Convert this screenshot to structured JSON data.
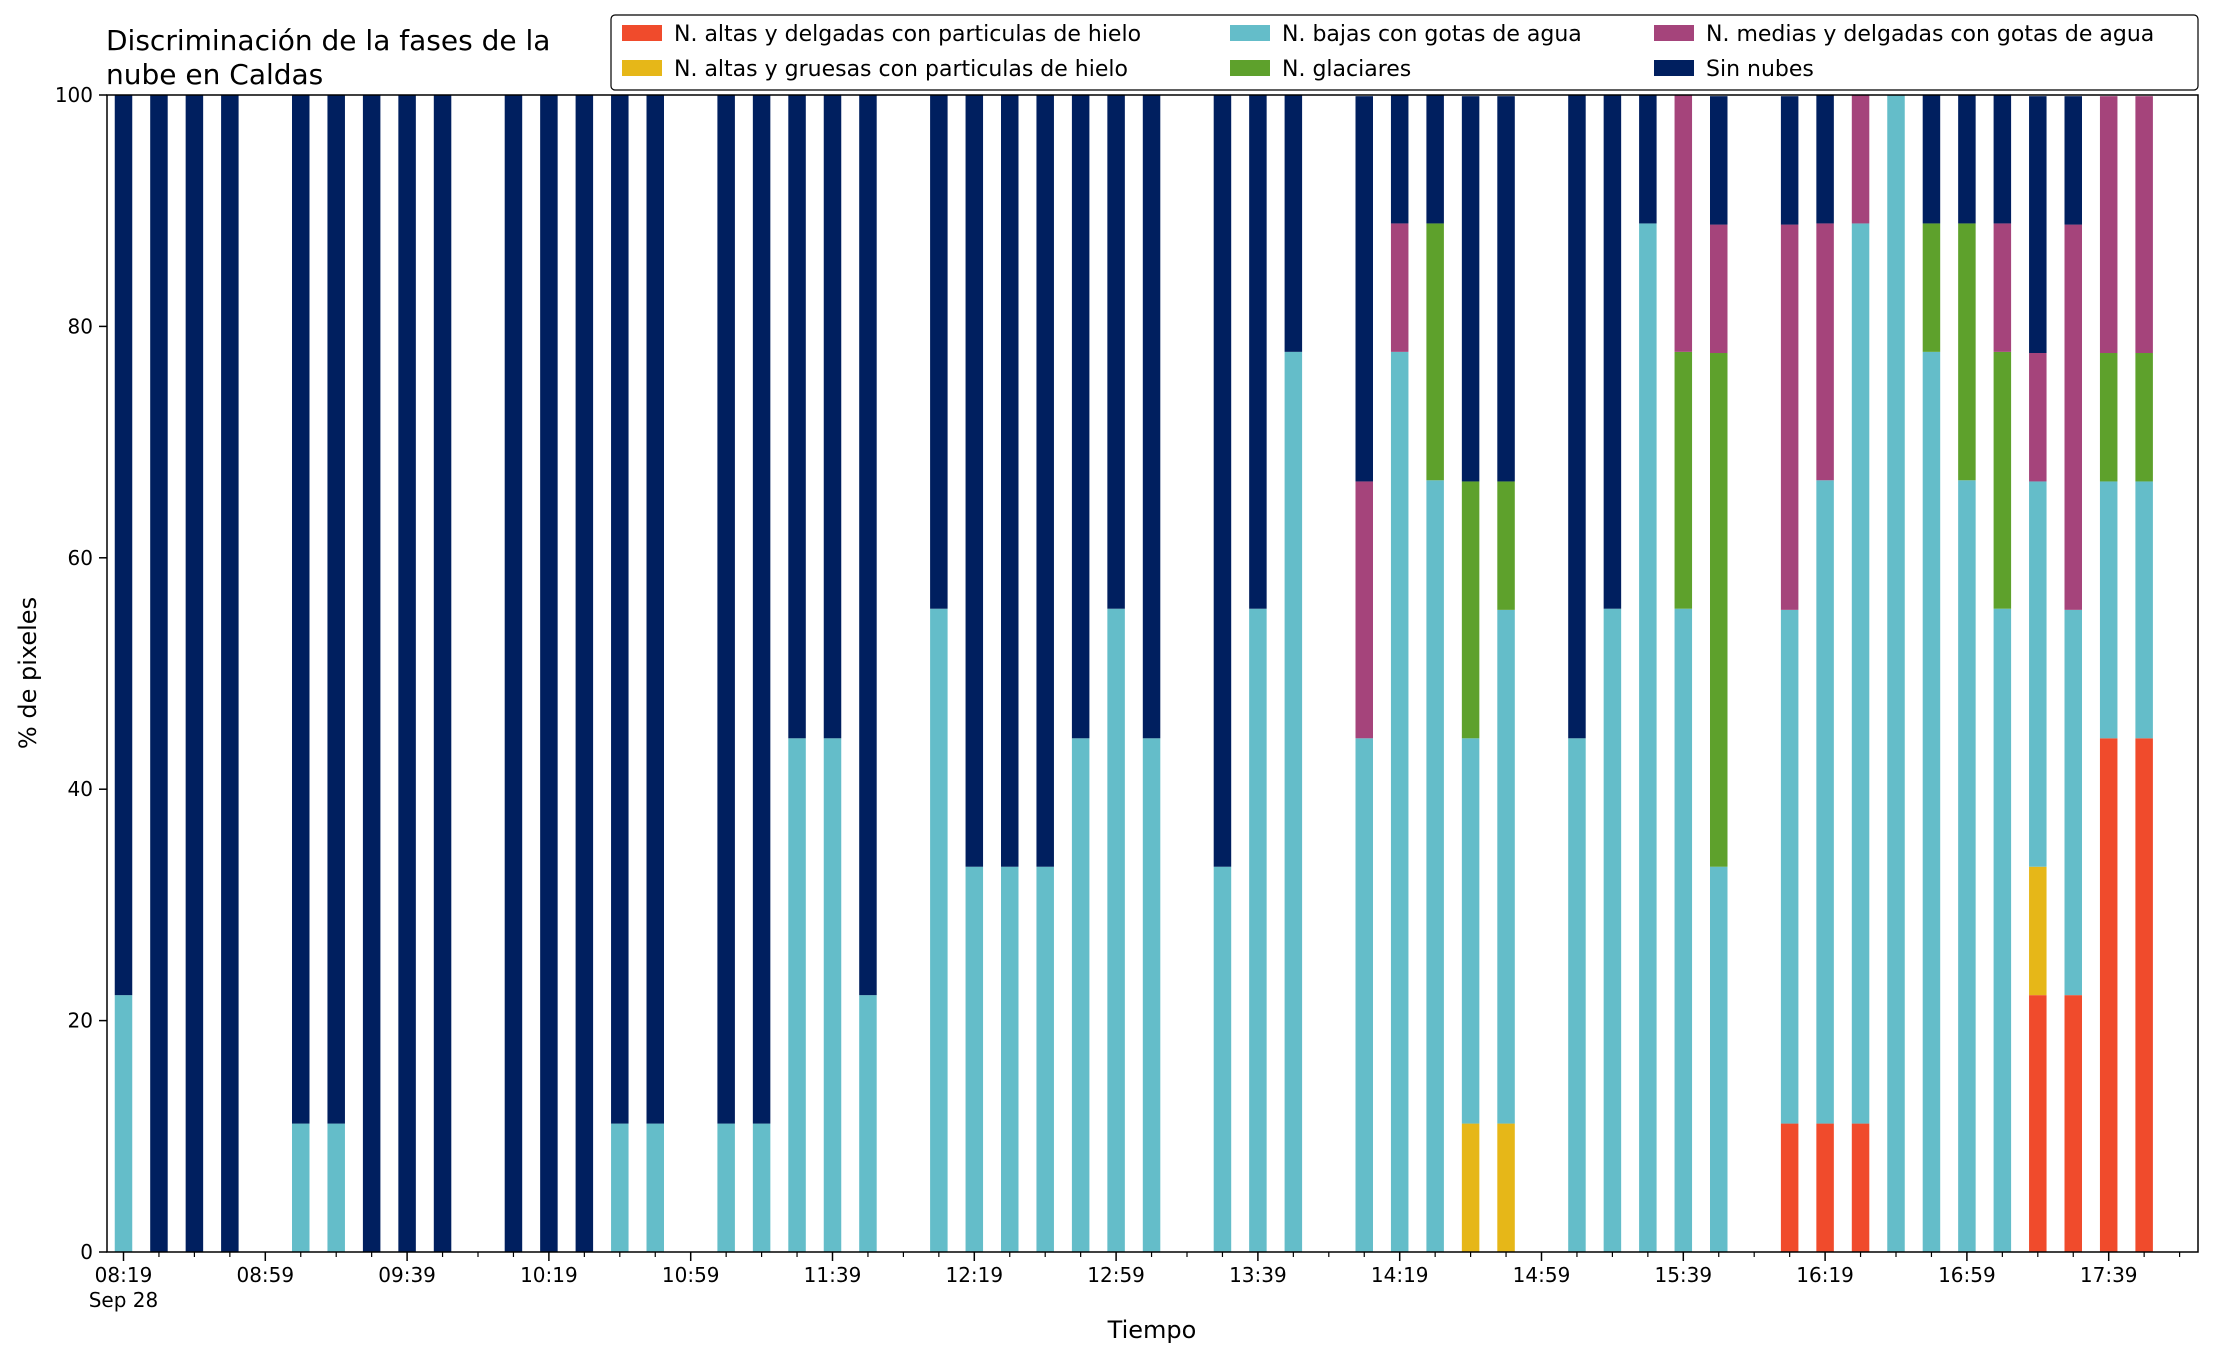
{
  "chart_data": {
    "type": "bar",
    "stacked": true,
    "title": "Discriminación de la fases de la\nnube en Caldas",
    "xlabel": "Tiempo",
    "ylabel": "% de pixeles",
    "ylim": [
      0,
      100
    ],
    "y_ticks": [
      "0",
      "20",
      "40",
      "60",
      "80",
      "100"
    ],
    "x_tick_labels": [
      "08:19",
      "08:59",
      "09:39",
      "10:19",
      "10:59",
      "11:39",
      "12:19",
      "12:59",
      "13:39",
      "14:19",
      "14:59",
      "15:39",
      "16:19",
      "16:59",
      "17:39"
    ],
    "x_date_label": "Sep 28",
    "x_start": "08:19",
    "x_interval_minutes": 10,
    "grid": false,
    "legend_position": "top-right",
    "categories": [
      "08:19",
      "08:29",
      "08:39",
      "08:49",
      "08:59",
      "09:09",
      "09:19",
      "09:29",
      "09:39",
      "09:49",
      "09:59",
      "10:09",
      "10:19",
      "10:29",
      "10:39",
      "10:49",
      "10:59",
      "11:09",
      "11:19",
      "11:29",
      "11:39",
      "11:49",
      "11:59",
      "12:09",
      "12:19",
      "12:29",
      "12:39",
      "12:49",
      "12:59",
      "13:09",
      "13:19",
      "13:29",
      "13:39",
      "13:49",
      "13:59",
      "14:09",
      "14:19",
      "14:29",
      "14:39",
      "14:49",
      "14:59",
      "15:09",
      "15:19",
      "15:29",
      "15:39",
      "15:49",
      "15:59",
      "16:09",
      "16:19",
      "16:29",
      "16:39",
      "16:49",
      "16:59",
      "17:09",
      "17:19",
      "17:29",
      "17:39",
      "17:49"
    ],
    "series": [
      {
        "name": "N. altas y delgadas con particulas de hielo",
        "color": "#f04b2c",
        "values": [
          0,
          0,
          0,
          0,
          null,
          0,
          0,
          0,
          0,
          0,
          null,
          0,
          0,
          0,
          0,
          0,
          null,
          0,
          0,
          0,
          0,
          0,
          null,
          0,
          0,
          0,
          0,
          0,
          0,
          0,
          null,
          0,
          0,
          0,
          null,
          0,
          0,
          0,
          0,
          0,
          null,
          0,
          0,
          0,
          0,
          0,
          null,
          11.1,
          11.1,
          11.1,
          0,
          0,
          0,
          0,
          22.2,
          22.2,
          44.4,
          44.4
        ]
      },
      {
        "name": "N. altas y gruesas con particulas de hielo",
        "color": "#e6b718",
        "values": [
          0,
          0,
          0,
          0,
          null,
          0,
          0,
          0,
          0,
          0,
          null,
          0,
          0,
          0,
          0,
          0,
          null,
          0,
          0,
          0,
          0,
          0,
          null,
          0,
          0,
          0,
          0,
          0,
          0,
          0,
          null,
          0,
          0,
          0,
          null,
          0,
          0,
          0,
          11.1,
          11.1,
          null,
          0,
          0,
          0,
          0,
          0,
          null,
          0,
          0,
          0,
          0,
          0,
          0,
          0,
          11.1,
          0,
          0,
          0
        ]
      },
      {
        "name": "N. bajas con gotas de agua",
        "color": "#64bdc9",
        "values": [
          22.2,
          0,
          0,
          0,
          null,
          11.1,
          11.1,
          0,
          0,
          0,
          null,
          0,
          0,
          0,
          11.1,
          11.1,
          null,
          11.1,
          11.1,
          44.4,
          44.4,
          22.2,
          null,
          55.6,
          33.3,
          33.3,
          33.3,
          44.4,
          55.6,
          44.4,
          null,
          33.3,
          55.6,
          77.8,
          null,
          44.4,
          77.8,
          66.7,
          33.3,
          44.4,
          null,
          44.4,
          55.6,
          88.9,
          55.6,
          33.3,
          null,
          44.4,
          55.6,
          77.8,
          100,
          77.8,
          66.7,
          55.6,
          33.3,
          33.3,
          22.2,
          22.2
        ]
      },
      {
        "name": "N. glaciares",
        "color": "#5ea12c",
        "values": [
          0,
          0,
          0,
          0,
          null,
          0,
          0,
          0,
          0,
          0,
          null,
          0,
          0,
          0,
          0,
          0,
          null,
          0,
          0,
          0,
          0,
          0,
          null,
          0,
          0,
          0,
          0,
          0,
          0,
          0,
          null,
          0,
          0,
          0,
          null,
          0,
          0,
          22.2,
          22.2,
          11.1,
          null,
          0,
          0,
          0,
          22.2,
          44.4,
          null,
          0,
          0,
          0,
          0,
          11.1,
          22.2,
          22.2,
          0,
          0,
          11.1,
          11.1
        ]
      },
      {
        "name": "N. medias y delgadas con gotas de agua",
        "color": "#a5447b",
        "values": [
          0,
          0,
          0,
          0,
          null,
          0,
          0,
          0,
          0,
          0,
          null,
          0,
          0,
          0,
          0,
          0,
          null,
          0,
          0,
          0,
          0,
          0,
          null,
          0,
          0,
          0,
          0,
          0,
          0,
          0,
          null,
          0,
          0,
          0,
          null,
          22.2,
          11.1,
          0,
          0,
          0,
          null,
          0,
          0,
          0,
          22.2,
          11.1,
          null,
          33.3,
          22.2,
          11.1,
          0,
          0,
          0,
          11.1,
          11.1,
          33.3,
          22.2,
          22.2
        ]
      },
      {
        "name": "Sin nubes",
        "color": "#001f5f",
        "values": [
          77.8,
          100,
          100,
          100,
          null,
          88.9,
          88.9,
          100,
          100,
          100,
          null,
          100,
          100,
          100,
          88.9,
          88.9,
          null,
          88.9,
          88.9,
          55.6,
          55.6,
          77.8,
          null,
          44.4,
          66.7,
          66.7,
          66.7,
          55.6,
          44.4,
          55.6,
          null,
          66.7,
          44.4,
          22.2,
          null,
          33.3,
          11.1,
          11.1,
          33.3,
          33.3,
          null,
          55.6,
          44.4,
          11.1,
          0,
          11.1,
          null,
          11.1,
          11.1,
          0,
          0,
          11.1,
          11.1,
          11.1,
          22.2,
          11.1,
          0,
          0
        ]
      }
    ]
  }
}
